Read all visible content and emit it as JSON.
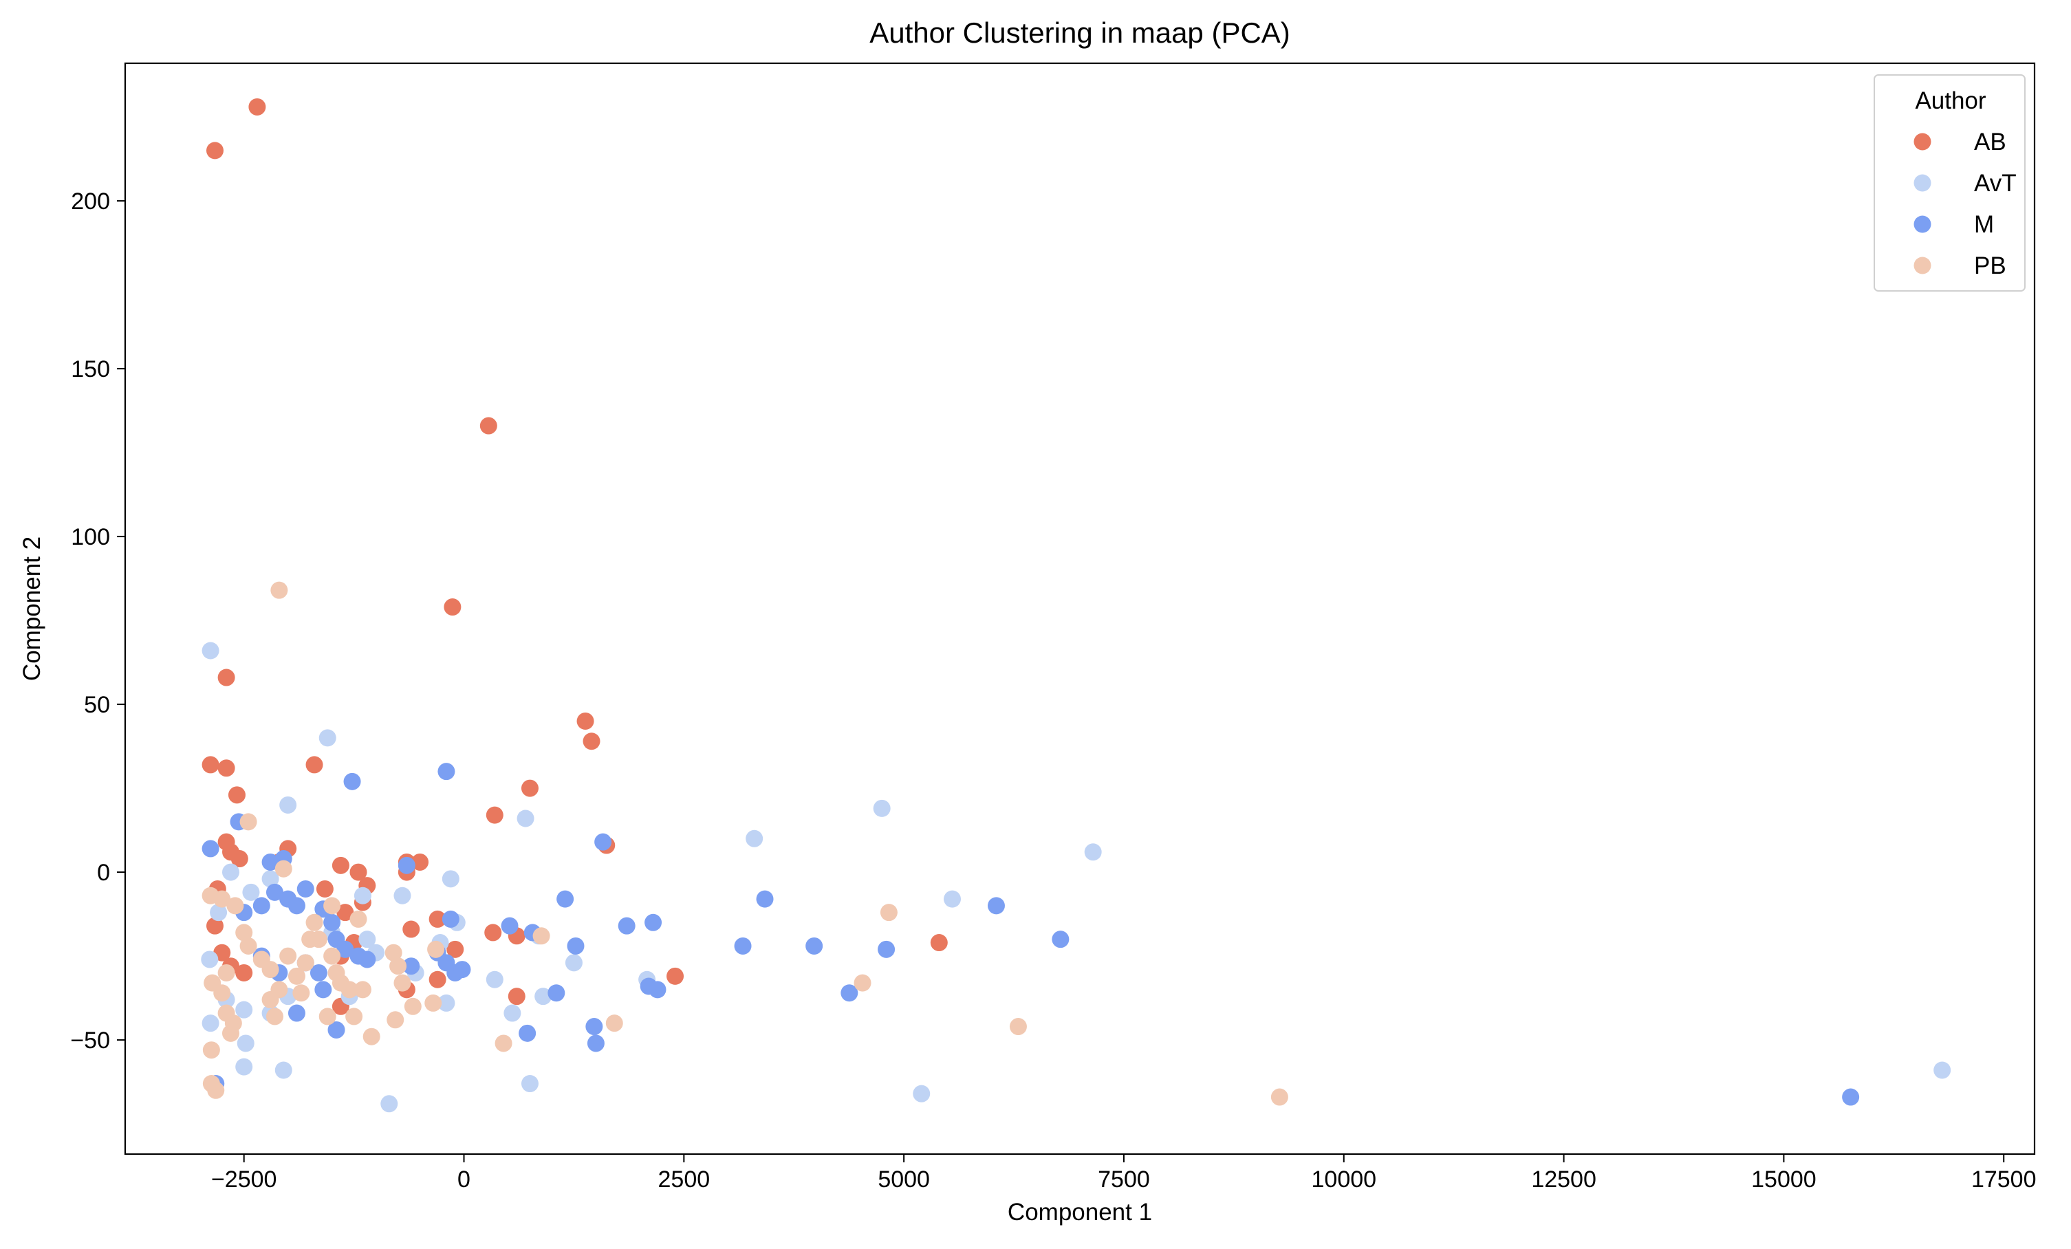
{
  "chart_data": {
    "type": "scatter",
    "title": "Author Clustering in maap (PCA)",
    "xlabel": "Component 1",
    "ylabel": "Component 2",
    "xlim": [
      -3850,
      17850
    ],
    "ylim": [
      -84,
      241
    ],
    "xticks": [
      -2500,
      0,
      2500,
      5000,
      7500,
      10000,
      12500,
      15000,
      17500
    ],
    "yticks": [
      -50,
      0,
      50,
      100,
      150,
      200
    ],
    "xtick_labels": [
      "−2500",
      "0",
      "2500",
      "5000",
      "7500",
      "10000",
      "12500",
      "15000",
      "17500"
    ],
    "ytick_labels": [
      "−50",
      "0",
      "50",
      "100",
      "150",
      "200"
    ],
    "grid": false,
    "legend": {
      "title": "Author",
      "placement": "top-right"
    },
    "series": [
      {
        "name": "AB",
        "color": "#e8785e",
        "points": [
          [
            -2830,
            215
          ],
          [
            -2350,
            228
          ],
          [
            280,
            133
          ],
          [
            -130,
            79
          ],
          [
            -2700,
            58
          ],
          [
            -2880,
            32
          ],
          [
            -2700,
            31
          ],
          [
            -1700,
            32
          ],
          [
            1380,
            45
          ],
          [
            1450,
            39
          ],
          [
            750,
            25
          ],
          [
            350,
            17
          ],
          [
            -2580,
            23
          ],
          [
            -2700,
            9
          ],
          [
            -2650,
            6
          ],
          [
            -2550,
            4
          ],
          [
            -2000,
            7
          ],
          [
            -1400,
            2
          ],
          [
            -1200,
            0
          ],
          [
            -1100,
            -4
          ],
          [
            -650,
            3
          ],
          [
            -500,
            3
          ],
          [
            -650,
            0
          ],
          [
            1620,
            8
          ],
          [
            -2800,
            -5
          ],
          [
            -2830,
            -16
          ],
          [
            -1580,
            -5
          ],
          [
            -1350,
            -12
          ],
          [
            -1150,
            -9
          ],
          [
            -600,
            -17
          ],
          [
            -300,
            -14
          ],
          [
            330,
            -18
          ],
          [
            600,
            -19
          ],
          [
            -1250,
            -21
          ],
          [
            -1400,
            -25
          ],
          [
            -300,
            -32
          ],
          [
            -650,
            -35
          ],
          [
            -2750,
            -24
          ],
          [
            -2650,
            -28
          ],
          [
            -2500,
            -30
          ],
          [
            -1400,
            -40
          ],
          [
            600,
            -37
          ],
          [
            2400,
            -31
          ],
          [
            5400,
            -21
          ],
          [
            -2100,
            3
          ],
          [
            -100,
            -23
          ]
        ]
      },
      {
        "name": "AvT",
        "color": "#bfd3f4",
        "points": [
          [
            -2880,
            66
          ],
          [
            -1550,
            40
          ],
          [
            -2000,
            20
          ],
          [
            700,
            16
          ],
          [
            3300,
            10
          ],
          [
            4750,
            19
          ],
          [
            7150,
            6
          ],
          [
            -2650,
            0
          ],
          [
            -2200,
            -2
          ],
          [
            -1150,
            -7
          ],
          [
            -700,
            -7
          ],
          [
            -150,
            -2
          ],
          [
            -80,
            -15
          ],
          [
            -270,
            -21
          ],
          [
            -550,
            -30
          ],
          [
            -200,
            -39
          ],
          [
            350,
            -32
          ],
          [
            900,
            -37
          ],
          [
            550,
            -42
          ],
          [
            1250,
            -27
          ],
          [
            2080,
            -32
          ],
          [
            5550,
            -8
          ],
          [
            -2890,
            -26
          ],
          [
            -2880,
            -45
          ],
          [
            -2700,
            -38
          ],
          [
            -2500,
            -41
          ],
          [
            -2480,
            -51
          ],
          [
            -2500,
            -58
          ],
          [
            -2050,
            -59
          ],
          [
            -2200,
            -42
          ],
          [
            -2000,
            -37
          ],
          [
            -1500,
            -18
          ],
          [
            -1100,
            -20
          ],
          [
            -1000,
            -24
          ],
          [
            -850,
            -69
          ],
          [
            750,
            -63
          ],
          [
            850,
            -19
          ],
          [
            5200,
            -66
          ],
          [
            16800,
            -59
          ],
          [
            -2790,
            -12
          ],
          [
            -2420,
            -6
          ],
          [
            -1300,
            -37
          ]
        ]
      },
      {
        "name": "M",
        "color": "#7b9ff2",
        "points": [
          [
            -2880,
            7
          ],
          [
            -2560,
            15
          ],
          [
            -1270,
            27
          ],
          [
            -200,
            30
          ],
          [
            -650,
            2
          ],
          [
            -2200,
            3
          ],
          [
            -2050,
            4
          ],
          [
            -2300,
            -10
          ],
          [
            -2500,
            -12
          ],
          [
            -2150,
            -6
          ],
          [
            -2000,
            -8
          ],
          [
            -1900,
            -10
          ],
          [
            -1800,
            -5
          ],
          [
            -1600,
            -11
          ],
          [
            -1500,
            -15
          ],
          [
            -1450,
            -20
          ],
          [
            -1350,
            -23
          ],
          [
            -1200,
            -25
          ],
          [
            -1800,
            -27
          ],
          [
            -1650,
            -30
          ],
          [
            -2300,
            -25
          ],
          [
            -2100,
            -30
          ],
          [
            -1900,
            -42
          ],
          [
            -1600,
            -35
          ],
          [
            -1450,
            -47
          ],
          [
            -1100,
            -26
          ],
          [
            -600,
            -28
          ],
          [
            -300,
            -24
          ],
          [
            -200,
            -27
          ],
          [
            -150,
            -14
          ],
          [
            -100,
            -30
          ],
          [
            -20,
            -29
          ],
          [
            520,
            -16
          ],
          [
            780,
            -18
          ],
          [
            1150,
            -8
          ],
          [
            1270,
            -22
          ],
          [
            1050,
            -36
          ],
          [
            1480,
            -46
          ],
          [
            1500,
            -51
          ],
          [
            1850,
            -16
          ],
          [
            2150,
            -15
          ],
          [
            2100,
            -34
          ],
          [
            2200,
            -35
          ],
          [
            3170,
            -22
          ],
          [
            3420,
            -8
          ],
          [
            3980,
            -22
          ],
          [
            4380,
            -36
          ],
          [
            4800,
            -23
          ],
          [
            6050,
            -10
          ],
          [
            6780,
            -20
          ],
          [
            15760,
            -67
          ],
          [
            1580,
            9
          ],
          [
            -2820,
            -63
          ],
          [
            720,
            -48
          ]
        ]
      },
      {
        "name": "PB",
        "color": "#f1c8b1",
        "points": [
          [
            -2100,
            84
          ],
          [
            -2450,
            15
          ],
          [
            -2050,
            1
          ],
          [
            -2880,
            -7
          ],
          [
            -2750,
            -8
          ],
          [
            -2600,
            -10
          ],
          [
            -2500,
            -18
          ],
          [
            -2450,
            -22
          ],
          [
            -2300,
            -26
          ],
          [
            -2200,
            -29
          ],
          [
            -2100,
            -35
          ],
          [
            -2000,
            -25
          ],
          [
            -1900,
            -31
          ],
          [
            -1800,
            -27
          ],
          [
            -1700,
            -15
          ],
          [
            -1650,
            -20
          ],
          [
            -1500,
            -25
          ],
          [
            -1450,
            -30
          ],
          [
            -1400,
            -33
          ],
          [
            -1300,
            -35
          ],
          [
            -1200,
            -14
          ],
          [
            -1150,
            -35
          ],
          [
            -1250,
            -43
          ],
          [
            -1050,
            -49
          ],
          [
            -800,
            -24
          ],
          [
            -750,
            -28
          ],
          [
            -700,
            -33
          ],
          [
            -780,
            -44
          ],
          [
            -580,
            -40
          ],
          [
            -350,
            -39
          ],
          [
            -320,
            -23
          ],
          [
            450,
            -51
          ],
          [
            880,
            -19
          ],
          [
            1710,
            -45
          ],
          [
            4530,
            -33
          ],
          [
            4830,
            -12
          ],
          [
            6300,
            -46
          ],
          [
            9270,
            -67
          ],
          [
            -2870,
            -53
          ],
          [
            -2870,
            -63
          ],
          [
            -2820,
            -65
          ],
          [
            -2750,
            -36
          ],
          [
            -2700,
            -42
          ],
          [
            -2650,
            -48
          ],
          [
            -2620,
            -45
          ],
          [
            -2700,
            -30
          ],
          [
            -2200,
            -38
          ],
          [
            -2150,
            -43
          ],
          [
            -1550,
            -43
          ],
          [
            -1500,
            -10
          ],
          [
            -1750,
            -20
          ],
          [
            -1850,
            -36
          ],
          [
            -2860,
            -33
          ]
        ]
      }
    ]
  }
}
